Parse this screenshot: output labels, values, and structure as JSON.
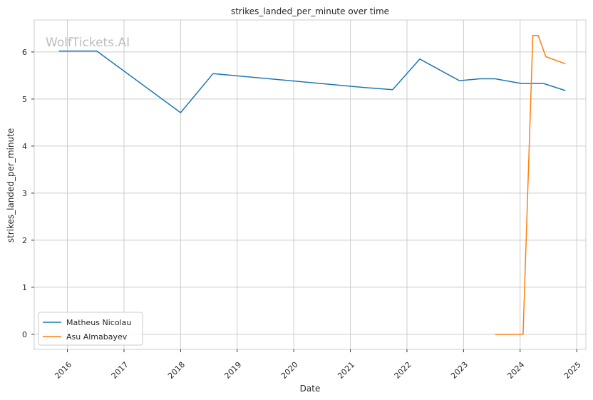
{
  "chart_data": {
    "type": "line",
    "title": "strikes_landed_per_minute over time",
    "xlabel": "Date",
    "ylabel": "strikes_landed_per_minute",
    "watermark": "WolfTickets.AI",
    "x_ticks": [
      "2016",
      "2017",
      "2018",
      "2019",
      "2020",
      "2021",
      "2022",
      "2023",
      "2024",
      "2025"
    ],
    "y_ticks": [
      "0",
      "1",
      "2",
      "3",
      "4",
      "5",
      "6"
    ],
    "xlim": [
      "2015-06-01",
      "2025-03-01"
    ],
    "ylim": [
      -0.32,
      6.68
    ],
    "grid": true,
    "legend_position": "lower-left",
    "series": [
      {
        "name": "Matheus Nicolau",
        "color": "#1f77b4",
        "x": [
          "2015-11-07",
          "2016-07-09",
          "2018-01-01",
          "2018-07-30",
          "2021-03-14",
          "2021-10-01",
          "2022-03-25",
          "2022-12-05",
          "2023-04-18",
          "2023-07-24",
          "2024-01-10",
          "2024-06-01",
          "2024-10-20"
        ],
        "y": [
          6.02,
          6.02,
          4.71,
          5.54,
          5.25,
          5.2,
          5.85,
          5.39,
          5.43,
          5.43,
          5.33,
          5.33,
          5.18
        ]
      },
      {
        "name": "Asu Almabayev",
        "color": "#ff7f0e",
        "x": [
          "2023-07-24",
          "2024-01-20",
          "2024-03-23",
          "2024-04-27",
          "2024-06-15",
          "2024-10-20"
        ],
        "y": [
          0.0,
          0.0,
          6.35,
          6.35,
          5.9,
          5.75
        ]
      }
    ]
  }
}
